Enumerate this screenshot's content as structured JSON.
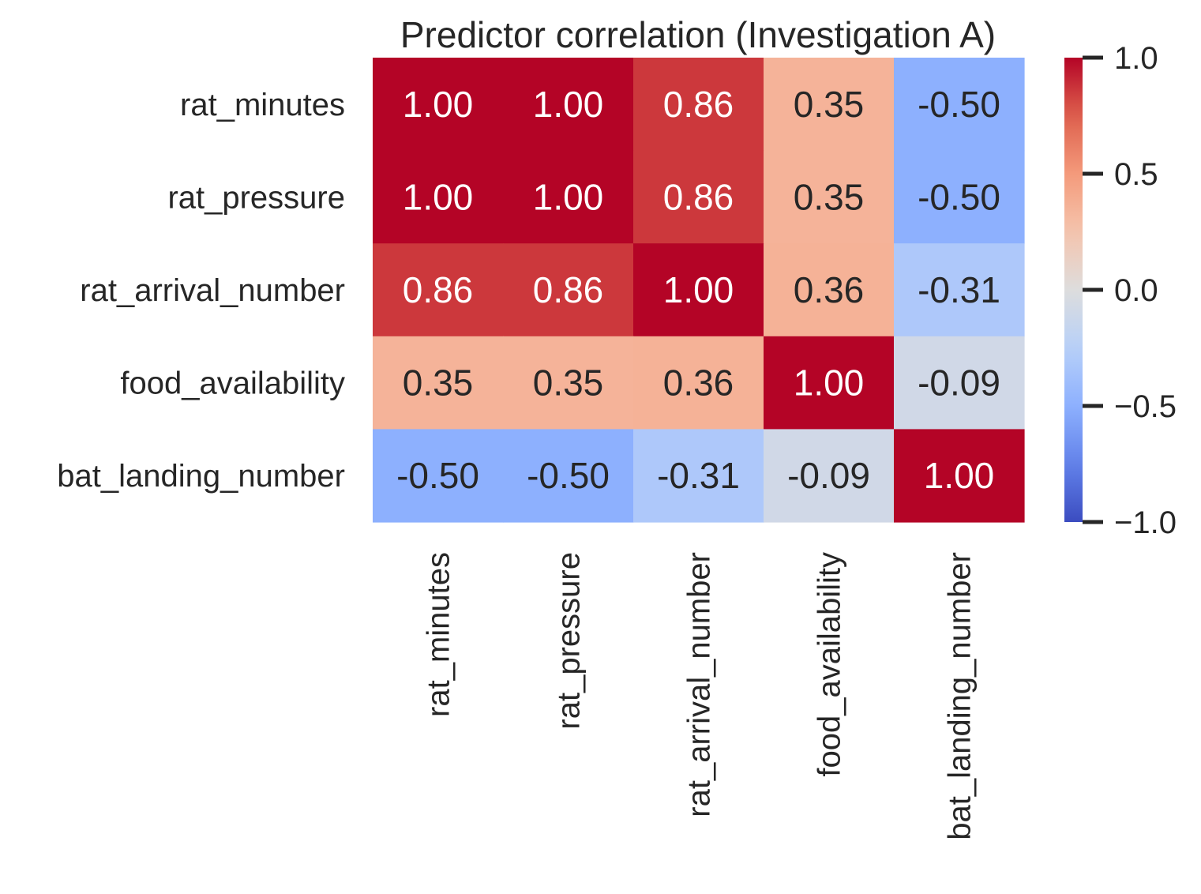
{
  "chart_data": {
    "type": "heatmap",
    "title": "Predictor correlation (Investigation A)",
    "rows": [
      "rat_minutes",
      "rat_pressure",
      "rat_arrival_number",
      "food_availability",
      "bat_landing_number"
    ],
    "columns": [
      "rat_minutes",
      "rat_pressure",
      "rat_arrival_number",
      "food_availability",
      "bat_landing_number"
    ],
    "values": [
      [
        1.0,
        1.0,
        0.86,
        0.35,
        -0.5
      ],
      [
        1.0,
        1.0,
        0.86,
        0.35,
        -0.5
      ],
      [
        0.86,
        0.86,
        1.0,
        0.36,
        -0.31
      ],
      [
        0.35,
        0.35,
        0.36,
        1.0,
        -0.09
      ],
      [
        -0.5,
        -0.5,
        -0.31,
        -0.09,
        1.0
      ]
    ],
    "value_labels": [
      [
        "1.00",
        "1.00",
        "0.86",
        "0.35",
        "-0.50"
      ],
      [
        "1.00",
        "1.00",
        "0.86",
        "0.35",
        "-0.50"
      ],
      [
        "0.86",
        "0.86",
        "1.00",
        "0.36",
        "-0.31"
      ],
      [
        "0.35",
        "0.35",
        "0.36",
        "1.00",
        "-0.09"
      ],
      [
        "-0.50",
        "-0.50",
        "-0.31",
        "-0.09",
        "1.00"
      ]
    ],
    "colormap": "coolwarm",
    "vmin": -1.0,
    "vmax": 1.0,
    "colorbar": {
      "ticks": [
        1.0,
        0.5,
        0.0,
        -0.5,
        -1.0
      ],
      "tick_labels": [
        "1.0",
        "0.5",
        "0.0",
        "−0.5",
        "−1.0"
      ]
    },
    "annotations_on": true,
    "grid": false
  }
}
